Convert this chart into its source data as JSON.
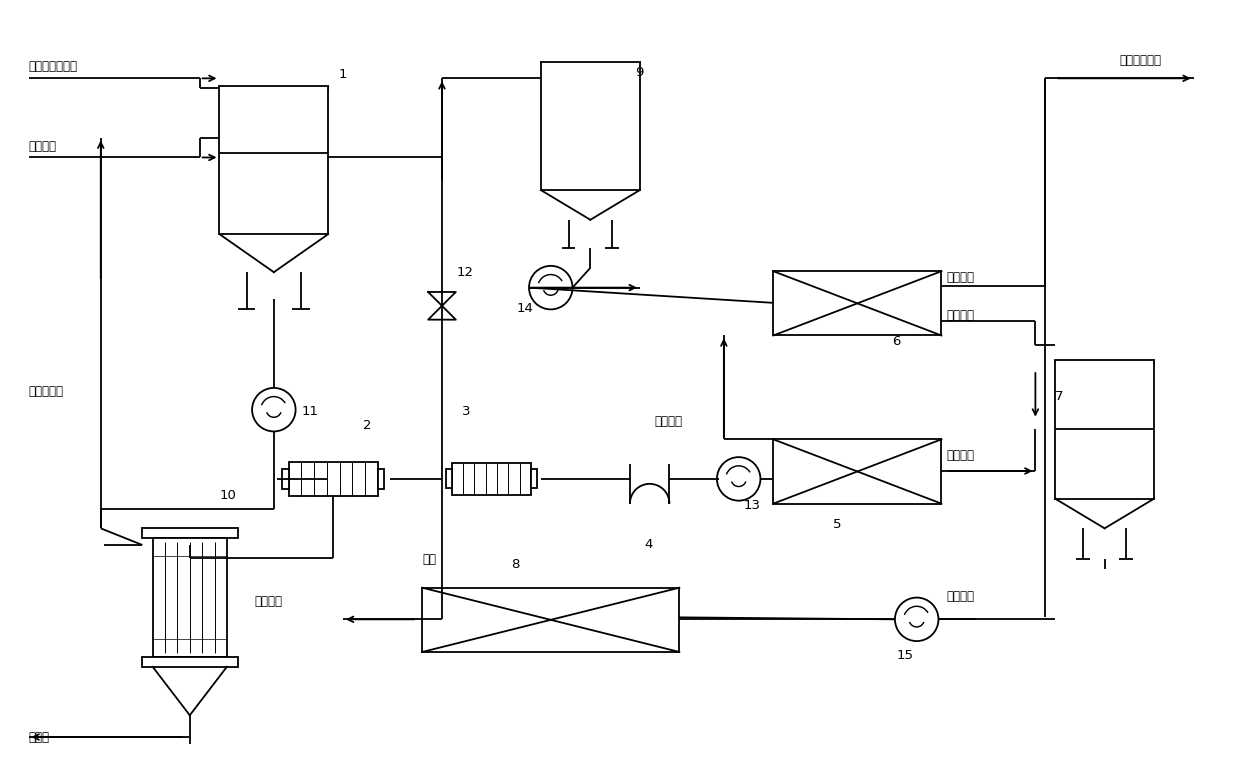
{
  "bg_color": "#ffffff",
  "labels": {
    "input1": "高浓度废硫酸液",
    "input2": "去离子水",
    "evap_condensate": "蒸发冷凝水",
    "conc_sulfuric": "浓硫酸",
    "pure_water": "纯水",
    "conc_sulfate_slurry": "浓硫酸浆",
    "primary_concentrate": "一级浓液",
    "primary_clear": "一级清液",
    "secondary_concentrate": "二级浓液",
    "secondary_clear": "二级清液",
    "acid_salt_wastewater": "脱酸含盐废水",
    "sulfuric_clear": "硫酸清液"
  },
  "font_size": 8.5,
  "lw": 1.3
}
